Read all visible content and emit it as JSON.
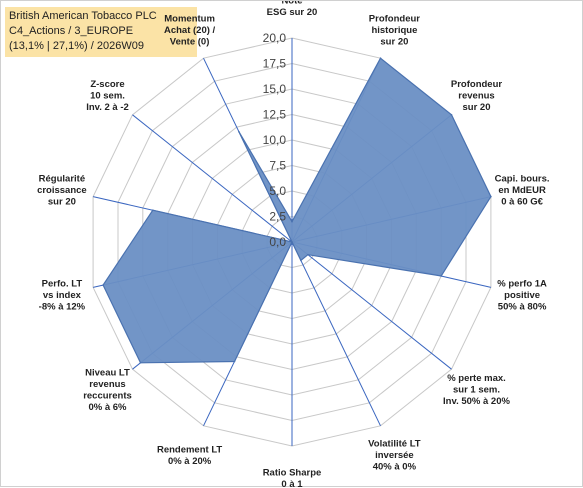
{
  "header": {
    "title_line1": "British American Tobacco PLC",
    "title_line2": "C4_Actions / 3_EUROPE",
    "title_line3": "(13,1% | 27,1%) / 2026W09"
  },
  "colors": {
    "fill": "#6a8fc4",
    "stroke": "#4a72b0",
    "grid": "#c8c8c8",
    "spoke": "#3a66c0",
    "title_bg": "#fbe3a6"
  },
  "chart_data": {
    "type": "radar",
    "title": "",
    "range": [
      0,
      20
    ],
    "ticks": [
      "0,0",
      "2,5",
      "5,0",
      "7,5",
      "10,0",
      "12,5",
      "15,0",
      "17,5",
      "20,0"
    ],
    "grid": true,
    "axes": [
      {
        "label": [
          "Note",
          "ESG sur 20"
        ],
        "value": 2
      },
      {
        "label": [
          "Profondeur",
          "historique",
          "sur 20"
        ],
        "value": 20
      },
      {
        "label": [
          "Profondeur",
          "revenus",
          "sur 20"
        ],
        "value": 20
      },
      {
        "label": [
          "Capi. bours.",
          "en MdEUR",
          "0 à 60 G€"
        ],
        "value": 20
      },
      {
        "label": [
          "% perfo 1A",
          "positive",
          "50% à 80%"
        ],
        "value": 15
      },
      {
        "label": [
          "% perte max.",
          "sur 1 sem.",
          "Inv. 50% à 20%"
        ],
        "value": 2
      },
      {
        "label": [
          "Volatilité LT",
          "inversée",
          "40% à 0%"
        ],
        "value": 2
      },
      {
        "label": [
          "Ratio Sharpe",
          "0 à 1"
        ],
        "value": 0
      },
      {
        "label": [
          "Rendement LT",
          "0% à 20%"
        ],
        "value": 13
      },
      {
        "label": [
          "Niveau LT",
          "revenus",
          "reccurents",
          "0% à 6%"
        ],
        "value": 19
      },
      {
        "label": [
          "Perfo. LT",
          "vs index",
          "-8% à 12%"
        ],
        "value": 19
      },
      {
        "label": [
          "Régularité",
          "croissance",
          "sur 20"
        ],
        "value": 14
      },
      {
        "label": [
          "Z-score",
          "10 sem.",
          "Inv. 2 à -2"
        ],
        "value": 0
      },
      {
        "label": [
          "Momentum",
          "Achat (20) /",
          "Vente (0)"
        ],
        "value": 12
      }
    ]
  }
}
